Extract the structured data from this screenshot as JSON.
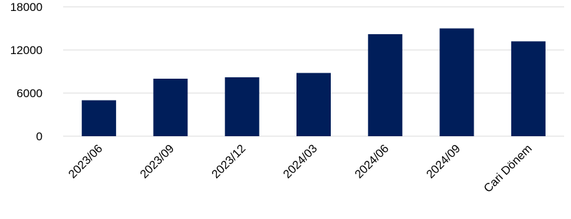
{
  "chart_data": {
    "type": "bar",
    "categories": [
      "2023/06",
      "2023/09",
      "2023/12",
      "2024/03",
      "2024/06",
      "2024/09",
      "Cari Dönem"
    ],
    "values": [
      5000,
      8000,
      8200,
      8800,
      14200,
      15000,
      13200
    ],
    "ylim": [
      0,
      18000
    ],
    "yticks": [
      0,
      6000,
      12000,
      18000
    ],
    "grid": true,
    "colors": {
      "bar": "#001e5a",
      "grid": "#d9d9d9"
    }
  }
}
